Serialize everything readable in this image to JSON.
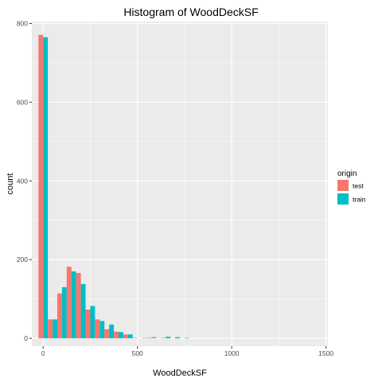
{
  "chart_data": {
    "type": "bar",
    "title": "Histogram of WoodDeckSF",
    "xlabel": "WoodDeckSF",
    "ylabel": "count",
    "xlim": [
      -60,
      1510
    ],
    "ylim": [
      -20,
      805
    ],
    "x_ticks": [
      0,
      500,
      1000,
      1500
    ],
    "x_tick_labels": [
      "0",
      "500",
      "1000",
      "1500"
    ],
    "y_ticks": [
      0,
      200,
      400,
      600,
      800
    ],
    "y_tick_labels": [
      "0",
      "200",
      "400",
      "600",
      "800"
    ],
    "bin_width": 50,
    "categories": [
      0,
      50,
      100,
      150,
      200,
      250,
      300,
      350,
      400,
      450,
      500,
      550,
      600,
      650,
      700,
      750
    ],
    "grid": true,
    "legend": {
      "title": "origin",
      "placement": "right"
    },
    "series": [
      {
        "name": "test",
        "color": "#F8766D",
        "values": [
          771,
          48,
          114,
          182,
          166,
          73,
          48,
          23,
          17,
          10,
          1,
          1,
          3,
          1,
          0,
          0
        ]
      },
      {
        "name": "train",
        "color": "#00BFC4",
        "values": [
          765,
          48,
          130,
          170,
          138,
          82,
          44,
          35,
          16,
          10,
          0,
          1,
          0,
          4,
          3,
          1
        ]
      }
    ]
  }
}
